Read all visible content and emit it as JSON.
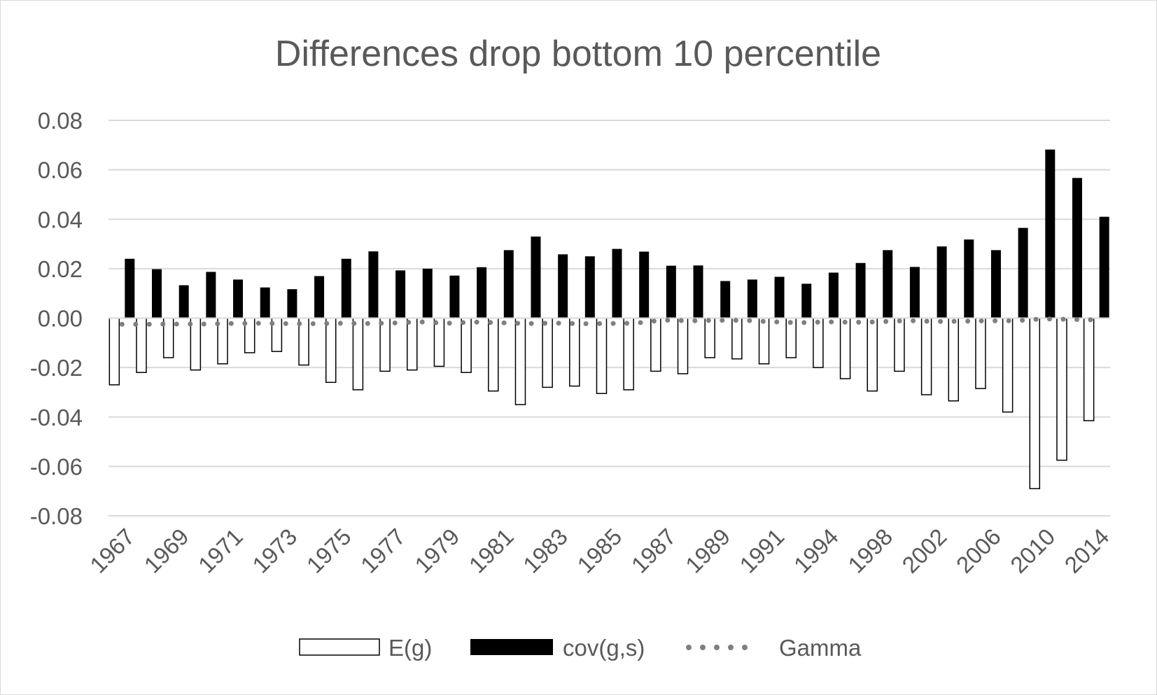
{
  "chart_data": {
    "type": "bar",
    "title": "Differences drop bottom 10 percentile",
    "xlabel": "",
    "ylabel": "",
    "ylim": [
      -0.08,
      0.08
    ],
    "yticks": [
      0.08,
      0.06,
      0.04,
      0.02,
      0.0,
      -0.02,
      -0.04,
      -0.06,
      -0.08
    ],
    "ytick_labels": [
      "0.08",
      "0.06",
      "0.04",
      "0.02",
      "0.00",
      "-0.02",
      "-0.04",
      "-0.06",
      "-0.08"
    ],
    "grid": true,
    "legend_position": "bottom",
    "categories": [
      "1967",
      "1968",
      "1969",
      "1970",
      "1971",
      "1972",
      "1973",
      "1974",
      "1975",
      "1976",
      "1977",
      "1978",
      "1979",
      "1980",
      "1981",
      "1982",
      "1983",
      "1984",
      "1985",
      "1986",
      "1987",
      "1988",
      "1989",
      "1990",
      "1991",
      "1992",
      "1994",
      "1996",
      "1998",
      "2000",
      "2002",
      "2004",
      "2006",
      "2008",
      "2010",
      "2012",
      "2014"
    ],
    "visible_tick_labels": [
      "1967",
      "1969",
      "1971",
      "1973",
      "1975",
      "1977",
      "1979",
      "1981",
      "1983",
      "1985",
      "1987",
      "1989",
      "1991",
      "1994",
      "1998",
      "2002",
      "2006",
      "2010",
      "2014"
    ],
    "series": [
      {
        "name": "E(g)",
        "style": "bar-outline",
        "color": "#ffffff",
        "values": [
          -0.027,
          -0.022,
          -0.016,
          -0.021,
          -0.0185,
          -0.014,
          -0.0135,
          -0.019,
          -0.026,
          -0.029,
          -0.0215,
          -0.021,
          -0.0195,
          -0.022,
          -0.0295,
          -0.035,
          -0.028,
          -0.0275,
          -0.0305,
          -0.029,
          -0.0215,
          -0.0225,
          -0.016,
          -0.0165,
          -0.0185,
          -0.016,
          -0.02,
          -0.0245,
          -0.0295,
          -0.0215,
          -0.031,
          -0.0335,
          -0.0285,
          -0.038,
          -0.069,
          -0.0575,
          -0.0415
        ]
      },
      {
        "name": "cov(g,s)",
        "style": "bar-solid",
        "color": "#000000",
        "values": [
          0.024,
          0.0198,
          0.0133,
          0.0187,
          0.0156,
          0.0124,
          0.0117,
          0.017,
          0.024,
          0.027,
          0.0193,
          0.02,
          0.0172,
          0.0206,
          0.0275,
          0.033,
          0.0258,
          0.025,
          0.028,
          0.0269,
          0.0212,
          0.0213,
          0.015,
          0.0156,
          0.0167,
          0.0139,
          0.0184,
          0.0223,
          0.0275,
          0.0207,
          0.029,
          0.0318,
          0.0275,
          0.0365,
          0.0682,
          0.0567,
          0.041
        ]
      },
      {
        "name": "Gamma",
        "style": "dotted-line",
        "color": "#7f7f7f",
        "values": [
          -0.0025,
          -0.0025,
          -0.0024,
          -0.0024,
          -0.0022,
          -0.0021,
          -0.0022,
          -0.0023,
          -0.0021,
          -0.0022,
          -0.002,
          -0.0015,
          -0.0021,
          -0.0016,
          -0.0019,
          -0.0022,
          -0.002,
          -0.0023,
          -0.0022,
          -0.002,
          -0.0008,
          -0.0011,
          -0.0009,
          -0.0009,
          -0.0015,
          -0.0019,
          -0.0015,
          -0.0017,
          -0.0015,
          -0.001,
          -0.0014,
          -0.0013,
          -0.0011,
          -0.0011,
          -0.0003,
          -0.0005,
          -0.0007
        ]
      }
    ]
  }
}
